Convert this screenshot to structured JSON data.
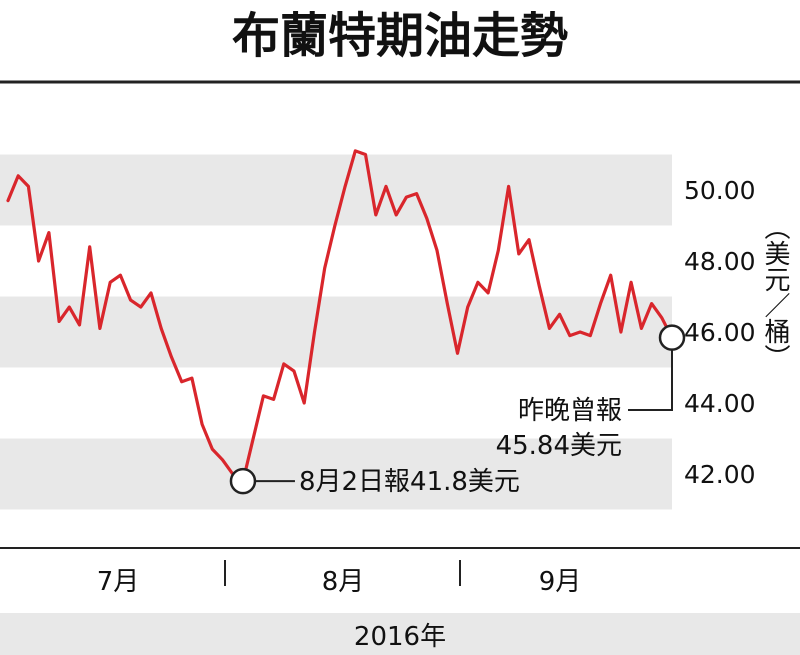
{
  "chart_data": {
    "type": "line",
    "title": "布蘭特期油走勢",
    "ylabel": "（美元／桶）",
    "ylim": [
      40.6,
      52.4
    ],
    "yticks": [
      "50.00",
      "48.00",
      "46.00",
      "44.00",
      "42.00"
    ],
    "ytick_values": [
      50,
      48,
      46,
      44,
      42
    ],
    "bands": [
      [
        49,
        51
      ],
      [
        45,
        47
      ],
      [
        41,
        43
      ]
    ],
    "months": [
      "7月",
      "8月",
      "9月"
    ],
    "year_label": "2016年",
    "series": [
      {
        "color": "#d9262c",
        "values": [
          49.7,
          50.4,
          50.1,
          48.0,
          48.8,
          46.3,
          46.7,
          46.2,
          48.4,
          46.1,
          47.4,
          47.6,
          46.9,
          46.7,
          47.1,
          46.1,
          45.3,
          44.6,
          44.7,
          43.4,
          42.7,
          42.4,
          42.0,
          41.8,
          43.0,
          44.2,
          44.1,
          45.1,
          44.9,
          44.0,
          46.0,
          47.8,
          49.0,
          50.1,
          51.1,
          51.0,
          49.3,
          50.1,
          49.3,
          49.8,
          49.9,
          49.2,
          48.3,
          46.8,
          45.4,
          46.7,
          47.4,
          47.1,
          48.3,
          50.1,
          48.2,
          48.6,
          47.3,
          46.1,
          46.5,
          45.9,
          46.0,
          45.9,
          46.8,
          47.6,
          46.0,
          47.4,
          46.1,
          46.8,
          46.4,
          45.84
        ]
      }
    ],
    "annotations": [
      {
        "label": "8月2日報41.8美元",
        "value": 41.8
      },
      {
        "label_line1": "昨晚曾報",
        "label_line2": "45.84美元",
        "value": 45.84
      }
    ]
  }
}
